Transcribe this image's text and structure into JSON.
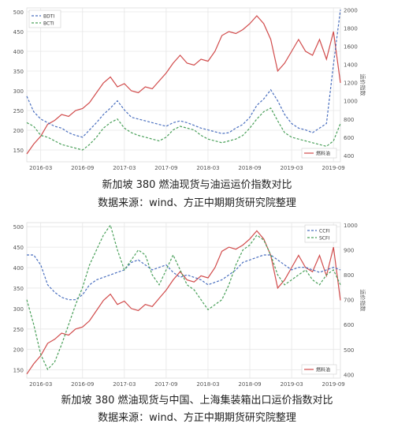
{
  "colors": {
    "fuel": "#d14b4b",
    "series_blue": "#4a6fbf",
    "series_green": "#4aa05a",
    "grid": "#e6e6e6",
    "axis_text": "#555555"
  },
  "captions": {
    "chart1_title": "新加坡 380 燃油现货与油运运价指数对比",
    "chart1_source": "数据来源：wind、方正中期期货研究院整理",
    "chart2_title": "新加坡 380 燃油现货与中国、上海集装箱出口运价指数对比",
    "chart2_source": "数据来源：wind、方正中期期货研究院整理"
  },
  "chart_data": [
    {
      "type": "line",
      "x_ticks": [
        "2016-03",
        "2016-09",
        "2017-03",
        "2017-09",
        "2018-03",
        "2018-09",
        "2019-03",
        "2019-09"
      ],
      "x_range": [
        "2016-01",
        "2019-10"
      ],
      "ylim_left": [
        120,
        510
      ],
      "yticks_left": [
        150,
        200,
        250,
        300,
        350,
        400,
        450,
        500
      ],
      "ylim_right": [
        330,
        2020
      ],
      "yticks_right": [
        400,
        600,
        800,
        1000,
        1200,
        1400,
        1600,
        1800,
        2000
      ],
      "ylabel_right": "运价指数",
      "legend_top": {
        "position": "top-left",
        "entries": [
          "BDTI",
          "BCTI"
        ]
      },
      "legend_bottom": {
        "position": "bottom-right",
        "entries": [
          "燃料油"
        ]
      },
      "grid": true,
      "series": [
        {
          "name": "燃料油",
          "axis": "left",
          "x": [
            "2016-01",
            "2016-02",
            "2016-03",
            "2016-04",
            "2016-05",
            "2016-06",
            "2016-07",
            "2016-08",
            "2016-09",
            "2016-10",
            "2016-11",
            "2016-12",
            "2017-01",
            "2017-02",
            "2017-03",
            "2017-04",
            "2017-05",
            "2017-06",
            "2017-07",
            "2017-08",
            "2017-09",
            "2017-10",
            "2017-11",
            "2017-12",
            "2018-01",
            "2018-02",
            "2018-03",
            "2018-04",
            "2018-05",
            "2018-06",
            "2018-07",
            "2018-08",
            "2018-09",
            "2018-10",
            "2018-11",
            "2018-12",
            "2019-01",
            "2019-02",
            "2019-03",
            "2019-04",
            "2019-05",
            "2019-06",
            "2019-07",
            "2019-08",
            "2019-09",
            "2019-10"
          ],
          "values": [
            140,
            165,
            185,
            215,
            225,
            240,
            235,
            250,
            255,
            270,
            295,
            320,
            335,
            310,
            318,
            300,
            295,
            310,
            305,
            325,
            345,
            370,
            390,
            370,
            365,
            380,
            375,
            400,
            440,
            450,
            445,
            455,
            470,
            490,
            470,
            430,
            350,
            370,
            400,
            430,
            400,
            390,
            430,
            380,
            450,
            320
          ]
        },
        {
          "name": "BDTI",
          "axis": "right",
          "x": [
            "2016-01",
            "2016-02",
            "2016-03",
            "2016-04",
            "2016-05",
            "2016-06",
            "2016-07",
            "2016-08",
            "2016-09",
            "2016-10",
            "2016-11",
            "2016-12",
            "2017-01",
            "2017-02",
            "2017-03",
            "2017-04",
            "2017-05",
            "2017-06",
            "2017-07",
            "2017-08",
            "2017-09",
            "2017-10",
            "2017-11",
            "2017-12",
            "2018-01",
            "2018-02",
            "2018-03",
            "2018-04",
            "2018-05",
            "2018-06",
            "2018-07",
            "2018-08",
            "2018-09",
            "2018-10",
            "2018-11",
            "2018-12",
            "2019-01",
            "2019-02",
            "2019-03",
            "2019-04",
            "2019-05",
            "2019-06",
            "2019-07",
            "2019-08",
            "2019-09",
            "2019-10"
          ],
          "values": [
            1050,
            880,
            800,
            760,
            720,
            700,
            650,
            620,
            600,
            680,
            760,
            850,
            920,
            1000,
            900,
            820,
            800,
            780,
            760,
            740,
            720,
            760,
            780,
            760,
            730,
            700,
            680,
            660,
            640,
            650,
            700,
            740,
            820,
            950,
            1020,
            1120,
            1000,
            850,
            750,
            700,
            680,
            650,
            700,
            750,
            1400,
            2000
          ]
        },
        {
          "name": "BCTI",
          "axis": "right",
          "x": [
            "2016-01",
            "2016-02",
            "2016-03",
            "2016-04",
            "2016-05",
            "2016-06",
            "2016-07",
            "2016-08",
            "2016-09",
            "2016-10",
            "2016-11",
            "2016-12",
            "2017-01",
            "2017-02",
            "2017-03",
            "2017-04",
            "2017-05",
            "2017-06",
            "2017-07",
            "2017-08",
            "2017-09",
            "2017-10",
            "2017-11",
            "2017-12",
            "2018-01",
            "2018-02",
            "2018-03",
            "2018-04",
            "2018-05",
            "2018-06",
            "2018-07",
            "2018-08",
            "2018-09",
            "2018-10",
            "2018-11",
            "2018-12",
            "2019-01",
            "2019-02",
            "2019-03",
            "2019-04",
            "2019-05",
            "2019-06",
            "2019-07",
            "2019-08",
            "2019-09",
            "2019-10"
          ],
          "values": [
            760,
            720,
            620,
            600,
            560,
            520,
            500,
            480,
            460,
            520,
            600,
            700,
            760,
            800,
            700,
            650,
            620,
            600,
            580,
            560,
            600,
            680,
            720,
            700,
            680,
            620,
            580,
            560,
            540,
            560,
            580,
            620,
            700,
            800,
            880,
            920,
            780,
            650,
            600,
            580,
            560,
            540,
            520,
            500,
            560,
            750
          ]
        }
      ]
    },
    {
      "type": "line",
      "x_ticks": [
        "2016-03",
        "2016-09",
        "2017-03",
        "2017-09",
        "2018-03",
        "2018-09",
        "2019-03",
        "2019-09"
      ],
      "x_range": [
        "2016-01",
        "2019-10"
      ],
      "ylim_left": [
        130,
        510
      ],
      "yticks_left": [
        150,
        200,
        250,
        300,
        350,
        400,
        450,
        500
      ],
      "ylim_right": [
        385,
        1010
      ],
      "yticks_right": [
        400,
        500,
        600,
        700,
        800,
        900,
        1000
      ],
      "ylabel_right": "运价指数",
      "legend_top": {
        "position": "top-right",
        "entries": [
          "CCFI",
          "SCFI"
        ]
      },
      "legend_bottom": {
        "position": "bottom-right",
        "entries": [
          "燃料油"
        ]
      },
      "grid": true,
      "series": [
        {
          "name": "燃料油",
          "axis": "left",
          "x": [
            "2016-01",
            "2016-02",
            "2016-03",
            "2016-04",
            "2016-05",
            "2016-06",
            "2016-07",
            "2016-08",
            "2016-09",
            "2016-10",
            "2016-11",
            "2016-12",
            "2017-01",
            "2017-02",
            "2017-03",
            "2017-04",
            "2017-05",
            "2017-06",
            "2017-07",
            "2017-08",
            "2017-09",
            "2017-10",
            "2017-11",
            "2017-12",
            "2018-01",
            "2018-02",
            "2018-03",
            "2018-04",
            "2018-05",
            "2018-06",
            "2018-07",
            "2018-08",
            "2018-09",
            "2018-10",
            "2018-11",
            "2018-12",
            "2019-01",
            "2019-02",
            "2019-03",
            "2019-04",
            "2019-05",
            "2019-06",
            "2019-07",
            "2019-08",
            "2019-09",
            "2019-10"
          ],
          "values": [
            140,
            165,
            185,
            215,
            225,
            240,
            235,
            250,
            255,
            270,
            295,
            320,
            335,
            310,
            318,
            300,
            295,
            310,
            305,
            325,
            345,
            370,
            390,
            370,
            365,
            380,
            375,
            400,
            440,
            450,
            445,
            455,
            470,
            490,
            470,
            430,
            350,
            370,
            400,
            430,
            400,
            390,
            430,
            380,
            450,
            320
          ]
        },
        {
          "name": "CCFI",
          "axis": "right",
          "x": [
            "2016-01",
            "2016-02",
            "2016-03",
            "2016-04",
            "2016-05",
            "2016-06",
            "2016-07",
            "2016-08",
            "2016-09",
            "2016-10",
            "2016-11",
            "2016-12",
            "2017-01",
            "2017-02",
            "2017-03",
            "2017-04",
            "2017-05",
            "2017-06",
            "2017-07",
            "2017-08",
            "2017-09",
            "2017-10",
            "2017-11",
            "2017-12",
            "2018-01",
            "2018-02",
            "2018-03",
            "2018-04",
            "2018-05",
            "2018-06",
            "2018-07",
            "2018-08",
            "2018-09",
            "2018-10",
            "2018-11",
            "2018-12",
            "2019-01",
            "2019-02",
            "2019-03",
            "2019-04",
            "2019-05",
            "2019-06",
            "2019-07",
            "2019-08",
            "2019-09",
            "2019-10"
          ],
          "values": [
            880,
            880,
            840,
            760,
            730,
            710,
            700,
            700,
            720,
            760,
            780,
            790,
            800,
            810,
            820,
            850,
            860,
            840,
            820,
            830,
            840,
            810,
            790,
            800,
            790,
            780,
            760,
            770,
            780,
            800,
            820,
            850,
            860,
            870,
            880,
            880,
            860,
            840,
            820,
            830,
            830,
            820,
            810,
            820,
            830,
            820
          ]
        },
        {
          "name": "SCFI",
          "axis": "right",
          "x": [
            "2016-01",
            "2016-02",
            "2016-03",
            "2016-04",
            "2016-05",
            "2016-06",
            "2016-07",
            "2016-08",
            "2016-09",
            "2016-10",
            "2016-11",
            "2016-12",
            "2017-01",
            "2017-02",
            "2017-03",
            "2017-04",
            "2017-05",
            "2017-06",
            "2017-07",
            "2017-08",
            "2017-09",
            "2017-10",
            "2017-11",
            "2017-12",
            "2018-01",
            "2018-02",
            "2018-03",
            "2018-04",
            "2018-05",
            "2018-06",
            "2018-07",
            "2018-08",
            "2018-09",
            "2018-10",
            "2018-11",
            "2018-12",
            "2019-01",
            "2019-02",
            "2019-03",
            "2019-04",
            "2019-05",
            "2019-06",
            "2019-07",
            "2019-08",
            "2019-09",
            "2019-10"
          ],
          "values": [
            700,
            600,
            480,
            420,
            450,
            520,
            600,
            680,
            750,
            840,
            900,
            960,
            1000,
            900,
            820,
            860,
            900,
            880,
            800,
            760,
            820,
            880,
            820,
            760,
            740,
            700,
            660,
            680,
            700,
            760,
            840,
            900,
            920,
            960,
            940,
            880,
            800,
            760,
            780,
            800,
            820,
            780,
            760,
            800,
            820,
            760
          ]
        }
      ]
    }
  ]
}
